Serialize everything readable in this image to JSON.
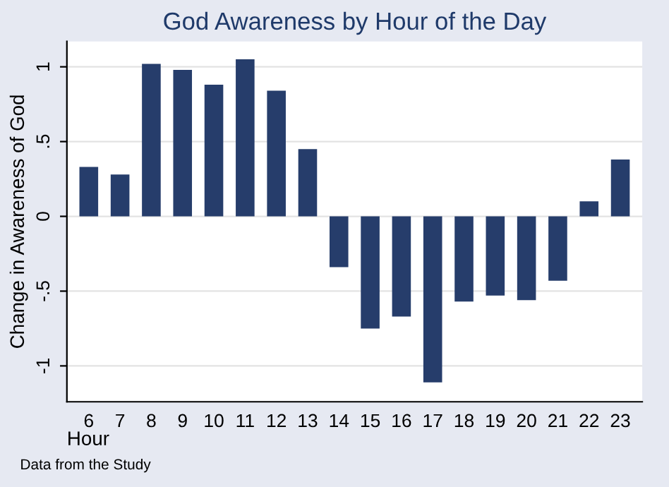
{
  "chart_data": {
    "type": "bar",
    "title": "God Awareness by Hour of the Day",
    "xlabel": "Hour",
    "ylabel": "Change in Awareness of God",
    "categories": [
      "6",
      "7",
      "8",
      "9",
      "10",
      "11",
      "12",
      "13",
      "14",
      "15",
      "16",
      "17",
      "18",
      "19",
      "20",
      "21",
      "22",
      "23"
    ],
    "values": [
      0.33,
      0.28,
      1.02,
      0.98,
      0.88,
      1.05,
      0.84,
      0.45,
      -0.34,
      -0.75,
      -0.67,
      -1.11,
      -0.57,
      -0.53,
      -0.56,
      -0.43,
      0.1,
      0.38
    ],
    "color": "#263d6b",
    "ylim": [
      -1.24,
      1.17
    ],
    "yticks": [
      {
        "value": -1,
        "label": "-1"
      },
      {
        "value": -0.5,
        "label": "-.5"
      },
      {
        "value": 0,
        "label": "0"
      },
      {
        "value": 0.5,
        "label": ".5"
      },
      {
        "value": 1,
        "label": "1"
      }
    ],
    "grid": "y",
    "annotations": [
      "Data from the Study"
    ]
  }
}
